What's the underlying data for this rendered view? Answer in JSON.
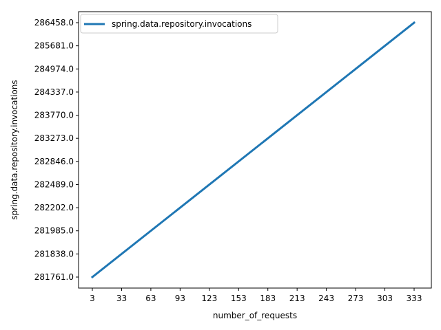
{
  "chart_data": {
    "type": "line",
    "title": "",
    "xlabel": "number_of_requests",
    "ylabel": "spring.data.repository.invocations",
    "x_ticks": [
      "3",
      "33",
      "63",
      "93",
      "123",
      "153",
      "183",
      "213",
      "243",
      "273",
      "303",
      "333"
    ],
    "y_ticks": [
      "281761.0",
      "281838.0",
      "281985.0",
      "282202.0",
      "282489.0",
      "282846.0",
      "283273.0",
      "283770.0",
      "284337.0",
      "284974.0",
      "285681.0",
      "286458.0"
    ],
    "series": [
      {
        "name": "spring.data.repository.invocations",
        "x": [
          3,
          333
        ],
        "y": [
          281761.0,
          286458.0
        ],
        "color": "#1f77b4"
      }
    ],
    "legend_position": "top-left",
    "grid": false
  }
}
